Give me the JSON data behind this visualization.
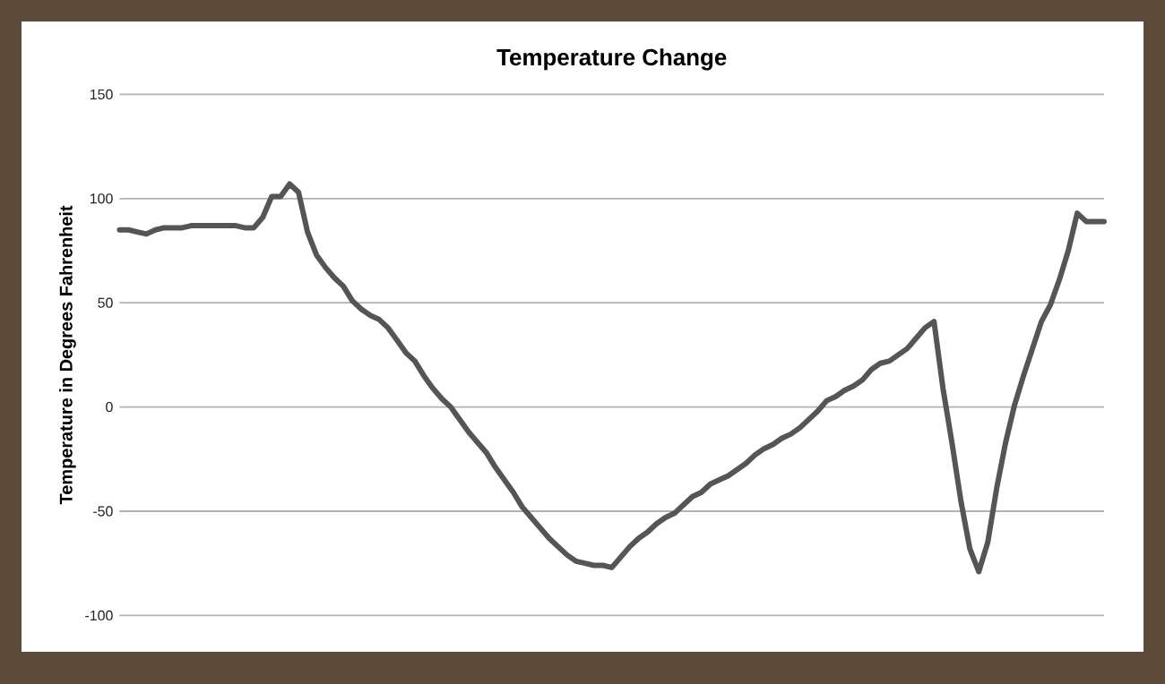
{
  "chart_data": {
    "type": "line",
    "title": "Temperature Change",
    "ylabel": "Temperature in Degrees Fahrenheit",
    "categories": [
      null,
      null,
      null,
      null,
      null,
      null,
      null,
      null,
      null,
      null,
      null,
      null,
      null,
      null,
      null,
      null,
      null,
      null,
      null,
      null,
      null,
      null,
      null,
      null,
      null,
      null,
      null,
      null,
      null,
      null,
      null,
      null,
      null,
      null,
      null,
      null,
      null,
      null,
      null,
      null,
      null,
      null,
      null,
      null,
      null,
      null,
      null,
      null,
      null,
      null,
      null,
      null,
      null,
      null,
      null,
      null,
      null,
      null,
      null,
      null,
      null,
      null,
      null,
      null,
      null,
      null,
      null,
      null,
      null,
      null,
      null,
      null,
      null,
      null,
      null,
      null,
      null,
      null,
      null,
      null,
      null,
      null,
      null,
      null,
      null,
      null,
      null,
      null,
      null,
      null,
      null,
      null,
      null,
      null,
      null,
      null,
      null,
      null,
      null,
      null,
      null,
      null,
      null,
      null,
      null,
      null,
      null,
      null,
      null,
      null,
      null
    ],
    "values": [
      85,
      85,
      84,
      83,
      85,
      86,
      86,
      86,
      87,
      87,
      87,
      87,
      87,
      87,
      86,
      86,
      91,
      101,
      101,
      107,
      103,
      84,
      73,
      67,
      62,
      58,
      51,
      47,
      44,
      42,
      38,
      32,
      26,
      22,
      15,
      9,
      4,
      0,
      -6,
      -12,
      -17,
      -22,
      -29,
      -35,
      -41,
      -48,
      -53,
      -58,
      -63,
      -67,
      -71,
      -74,
      -75,
      -76,
      -76,
      -77,
      -72,
      -67,
      -63,
      -60,
      -56,
      -53,
      -51,
      -47,
      -43,
      -41,
      -37,
      -35,
      -33,
      -30,
      -27,
      -23,
      -20,
      -18,
      -15,
      -13,
      -10,
      -6,
      -2,
      3,
      5,
      8,
      10,
      13,
      18,
      21,
      22,
      25,
      28,
      33,
      38,
      41,
      9,
      -17,
      -45,
      -68,
      -79,
      -65,
      -39,
      -17,
      1,
      15,
      28,
      41,
      49,
      61,
      75,
      93,
      89,
      89,
      89
    ],
    "color": "#555555",
    "line_style": "solid",
    "marker": "none",
    "grid": "y",
    "ylim": [
      -100,
      150
    ],
    "yticks": [
      -100,
      -50,
      0,
      50,
      100,
      150
    ]
  }
}
